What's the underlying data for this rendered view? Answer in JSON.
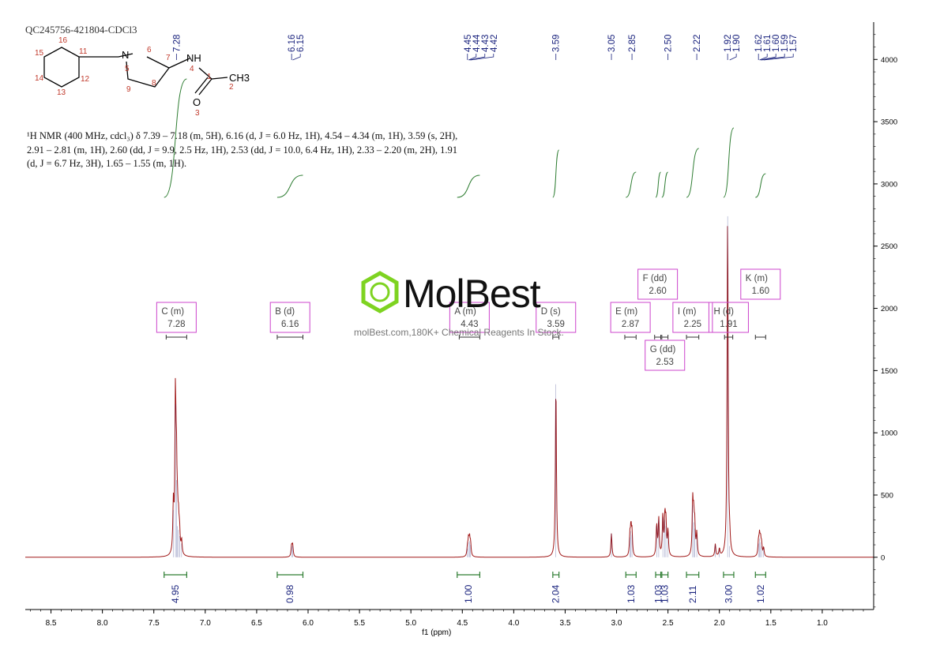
{
  "sample_id": "QC245756-421804-CDCl3",
  "description": "¹H NMR (400 MHz, cdcl₃) δ 7.39 – 7.18 (m, 5H), 6.16 (d, J = 6.0 Hz, 1H), 4.54 – 4.34 (m, 1H), 3.59 (s, 2H), 2.91 – 2.81 (m, 1H), 2.60 (dd, J = 9.9, 2.5 Hz, 1H), 2.53 (dd, J = 10.0, 6.4 Hz, 1H), 2.33 – 2.20 (m, 2H), 1.91 (d, J = 6.7 Hz, 3H), 1.65 – 1.55 (m, 1H).",
  "watermark": {
    "brand": "MolBest",
    "tagline": "molBest.com,180K+ Chemical Reagents In Stock."
  },
  "structure_labels": [
    "NH",
    "N",
    "CH3",
    "O",
    "1",
    "2",
    "3",
    "4",
    "5",
    "6",
    "7",
    "8",
    "9",
    "11",
    "12",
    "13",
    "14",
    "15",
    "16"
  ],
  "chart_data": {
    "type": "line",
    "title": "",
    "xlabel": "f1 (ppm)",
    "ylabel": "",
    "xlim": [
      8.75,
      0.5
    ],
    "ylim": [
      -420,
      4300
    ],
    "x_ticks": [
      "8.5",
      "8.0",
      "7.5",
      "7.0",
      "6.5",
      "6.0",
      "5.5",
      "5.0",
      "4.5",
      "4.0",
      "3.5",
      "3.0",
      "2.5",
      "2.0",
      "1.5",
      "1.0"
    ],
    "y_ticks": [
      "4000",
      "3500",
      "3000",
      "2500",
      "2000",
      "1500",
      "1000",
      "500",
      "0"
    ],
    "peaks": [
      {
        "ppm": 7.31,
        "height": 380
      },
      {
        "ppm": 7.29,
        "height": 1230
      },
      {
        "ppm": 7.28,
        "height": 620
      },
      {
        "ppm": 7.27,
        "height": 250
      },
      {
        "ppm": 7.26,
        "height": 220
      },
      {
        "ppm": 7.25,
        "height": 170
      },
      {
        "ppm": 7.23,
        "height": 110
      },
      {
        "ppm": 6.16,
        "height": 90
      },
      {
        "ppm": 6.15,
        "height": 90
      },
      {
        "ppm": 4.45,
        "height": 70
      },
      {
        "ppm": 4.44,
        "height": 120
      },
      {
        "ppm": 4.43,
        "height": 130
      },
      {
        "ppm": 4.42,
        "height": 100
      },
      {
        "ppm": 3.59,
        "height": 1390
      },
      {
        "ppm": 3.05,
        "height": 190
      },
      {
        "ppm": 2.87,
        "height": 160
      },
      {
        "ppm": 2.86,
        "height": 210
      },
      {
        "ppm": 2.85,
        "height": 180
      },
      {
        "ppm": 2.61,
        "height": 250
      },
      {
        "ppm": 2.59,
        "height": 300
      },
      {
        "ppm": 2.55,
        "height": 320
      },
      {
        "ppm": 2.53,
        "height": 300
      },
      {
        "ppm": 2.52,
        "height": 250
      },
      {
        "ppm": 2.5,
        "height": 200
      },
      {
        "ppm": 2.26,
        "height": 420
      },
      {
        "ppm": 2.25,
        "height": 280
      },
      {
        "ppm": 2.24,
        "height": 230
      },
      {
        "ppm": 2.22,
        "height": 180
      },
      {
        "ppm": 2.04,
        "height": 100
      },
      {
        "ppm": 2.0,
        "height": 60
      },
      {
        "ppm": 1.92,
        "height": 2740
      },
      {
        "ppm": 1.9,
        "height": 90
      },
      {
        "ppm": 1.62,
        "height": 110
      },
      {
        "ppm": 1.61,
        "height": 150
      },
      {
        "ppm": 1.6,
        "height": 120
      },
      {
        "ppm": 1.59,
        "height": 90
      },
      {
        "ppm": 1.57,
        "height": 70
      }
    ],
    "peak_labels": [
      {
        "text": "7.28",
        "ppm": 7.28
      },
      {
        "text": "6.16",
        "ppm": 6.16
      },
      {
        "text": "6.15",
        "ppm": 6.15
      },
      {
        "text": "4.45",
        "ppm": 4.45
      },
      {
        "text": "4.44",
        "ppm": 4.44
      },
      {
        "text": "4.43",
        "ppm": 4.43
      },
      {
        "text": "4.42",
        "ppm": 4.42
      },
      {
        "text": "3.59",
        "ppm": 3.59
      },
      {
        "text": "3.05",
        "ppm": 3.05
      },
      {
        "text": "2.85",
        "ppm": 2.85
      },
      {
        "text": "2.50",
        "ppm": 2.5
      },
      {
        "text": "2.22",
        "ppm": 2.22
      },
      {
        "text": "1.92",
        "ppm": 1.92
      },
      {
        "text": "1.90",
        "ppm": 1.9
      },
      {
        "text": "1.62",
        "ppm": 1.62
      },
      {
        "text": "1.61",
        "ppm": 1.61
      },
      {
        "text": "1.60",
        "ppm": 1.6
      },
      {
        "text": "1.59",
        "ppm": 1.59
      },
      {
        "text": "1.57",
        "ppm": 1.57
      }
    ],
    "multiplets": [
      {
        "letter": "C",
        "mult": "(m)",
        "shift": "7.28",
        "from": 7.38,
        "to": 7.18
      },
      {
        "letter": "B",
        "mult": "(d)",
        "shift": "6.16",
        "from": 6.3,
        "to": 6.05
      },
      {
        "letter": "A",
        "mult": "(m)",
        "shift": "4.43",
        "from": 4.53,
        "to": 4.33
      },
      {
        "letter": "D",
        "mult": "(s)",
        "shift": "3.59",
        "from": 3.62,
        "to": 3.56
      },
      {
        "letter": "E",
        "mult": "(m)",
        "shift": "2.87",
        "from": 2.92,
        "to": 2.81
      },
      {
        "letter": "F",
        "mult": "(dd)",
        "shift": "2.60",
        "from": 2.63,
        "to": 2.57
      },
      {
        "letter": "G",
        "mult": "(dd)",
        "shift": "2.53",
        "from": 2.56,
        "to": 2.5
      },
      {
        "letter": "I",
        "mult": "(m)",
        "shift": "2.25",
        "from": 2.32,
        "to": 2.2
      },
      {
        "letter": "H",
        "mult": "(d)",
        "shift": "1.91",
        "from": 1.95,
        "to": 1.87
      },
      {
        "letter": "K",
        "mult": "(m)",
        "shift": "1.60",
        "from": 1.65,
        "to": 1.55
      }
    ],
    "integrals": [
      {
        "value": "4.95",
        "from": 7.4,
        "to": 7.18
      },
      {
        "value": "0.98",
        "from": 6.3,
        "to": 6.05
      },
      {
        "value": "1.00",
        "from": 4.55,
        "to": 4.33
      },
      {
        "value": "2.04",
        "from": 3.62,
        "to": 3.56
      },
      {
        "value": "1.03",
        "from": 2.91,
        "to": 2.81
      },
      {
        "value": "1.03",
        "from": 2.62,
        "to": 2.57
      },
      {
        "value": "1.03",
        "from": 2.56,
        "to": 2.5
      },
      {
        "value": "2.11",
        "from": 2.32,
        "to": 2.2
      },
      {
        "value": "3.00",
        "from": 1.96,
        "to": 1.86
      },
      {
        "value": "1.02",
        "from": 1.65,
        "to": 1.55
      }
    ],
    "colors": {
      "spectrum": "#a01818",
      "peak_label": "#1a237e",
      "integral": "#2e7d32",
      "multiplet_box": "#cc44cc",
      "logo": "#7ed321"
    }
  }
}
